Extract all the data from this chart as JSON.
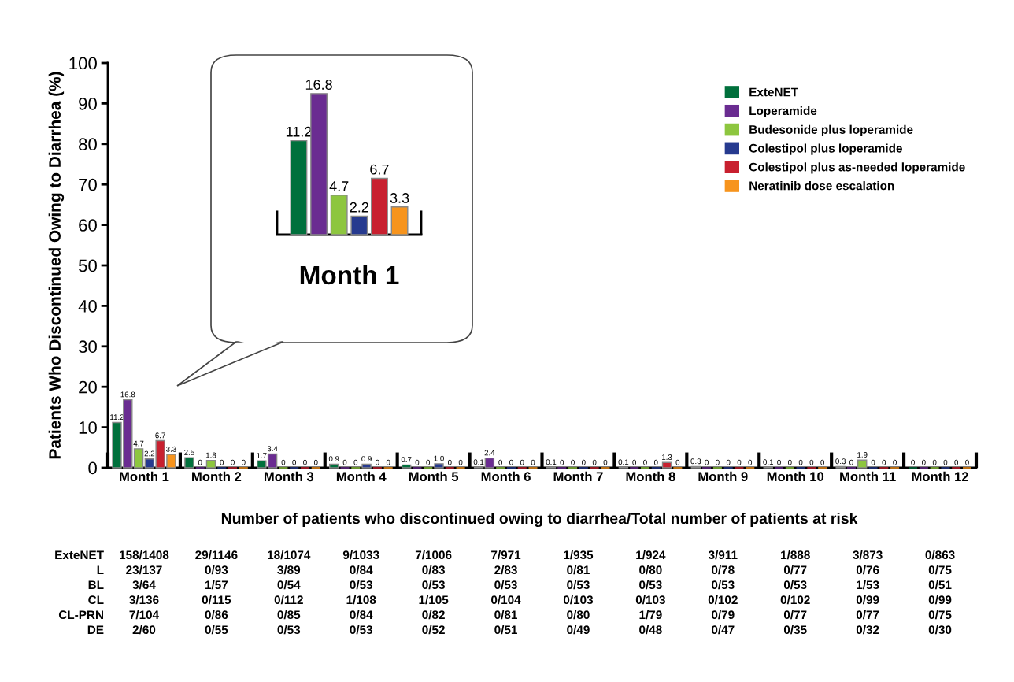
{
  "chart_data": [
    {
      "type": "bar",
      "ylabel": "Patients Who Discontinued Owing to Diarrhea (%)",
      "categories": [
        "Month 1",
        "Month 2",
        "Month 3",
        "Month 4",
        "Month 5",
        "Month 6",
        "Month 7",
        "Month 8",
        "Month 9",
        "Month 10",
        "Month 11",
        "Month 12"
      ],
      "series": [
        {
          "name": "ExteNET",
          "color": "#00703c",
          "values": [
            11.2,
            2.5,
            1.7,
            0.9,
            0.7,
            0.1,
            0.1,
            0.1,
            0.3,
            0.1,
            0.3,
            0
          ],
          "value_labels": [
            "11.2",
            "2.5",
            "1.7",
            "0.9",
            "0.7",
            "0.1",
            "0.1",
            "0.1",
            "0.3",
            "0.1",
            "0.3",
            "0"
          ]
        },
        {
          "name": "Loperamide",
          "color": "#6a2c91",
          "values": [
            16.8,
            0,
            3.4,
            0,
            0,
            2.4,
            0,
            0,
            0,
            0,
            0,
            0
          ],
          "value_labels": [
            "16.8",
            "0",
            "3.4",
            "0",
            "0",
            "2.4",
            "0",
            "0",
            "0",
            "0",
            "0",
            "0"
          ]
        },
        {
          "name": "Budesonide plus loperamide",
          "color": "#8dc63f",
          "values": [
            4.7,
            1.8,
            0,
            0,
            0,
            0,
            0,
            0,
            0,
            0,
            1.9,
            0
          ],
          "value_labels": [
            "4.7",
            "1.8",
            "0",
            "0",
            "0",
            "0",
            "0",
            "0",
            "0",
            "0",
            "1.9",
            "0"
          ]
        },
        {
          "name": "Colestipol plus loperamide",
          "color": "#263a8f",
          "values": [
            2.2,
            0,
            0,
            0.9,
            1.0,
            0,
            0,
            0,
            0,
            0,
            0,
            0
          ],
          "value_labels": [
            "2.2",
            "0",
            "0",
            "0.9",
            "1.0",
            "0",
            "0",
            "0",
            "0",
            "0",
            "0",
            "0"
          ]
        },
        {
          "name": "Colestipol plus as-needed loperamide",
          "color": "#c8202f",
          "values": [
            6.7,
            0,
            0,
            0,
            0,
            0,
            0,
            1.3,
            0,
            0,
            0,
            0
          ],
          "value_labels": [
            "6.7",
            "0",
            "0",
            "0",
            "0",
            "0",
            "0",
            "1.3",
            "0",
            "0",
            "0",
            "0"
          ]
        },
        {
          "name": "Neratinib dose escalation",
          "color": "#f7941d",
          "values": [
            3.3,
            0,
            0,
            0,
            0,
            0,
            0,
            0,
            0,
            0,
            0,
            0
          ],
          "value_labels": [
            "3.3",
            "0",
            "0",
            "0",
            "0",
            "0",
            "0",
            "0",
            "0",
            "0",
            "0",
            "0"
          ]
        }
      ],
      "ylim": [
        0,
        100
      ],
      "yticks": [
        0,
        10,
        20,
        30,
        40,
        50,
        60,
        70,
        80,
        90,
        100
      ],
      "grid": false,
      "legend": "top right",
      "annotations": [
        "Number of patients who discontinued owing to diarrhea/Total number of patients at risk",
        "ExteNET",
        "158/1408",
        "29/1146",
        "18/1074",
        "9/1033",
        "7/1006",
        "7/971",
        "1/935",
        "1/924",
        "3/911",
        "1/888",
        "3/873",
        "0/863",
        "L",
        "23/137",
        "0/93",
        "3/89",
        "0/84",
        "0/83",
        "2/83",
        "0/81",
        "0/80",
        "0/78",
        "0/77",
        "0/76",
        "0/75",
        "BL",
        "3/64",
        "1/57",
        "0/54",
        "0/53",
        "0/53",
        "0/53",
        "0/53",
        "0/53",
        "0/53",
        "0/53",
        "1/53",
        "0/51",
        "CL",
        "3/136",
        "0/115",
        "0/112",
        "1/108",
        "1/105",
        "0/104",
        "0/103",
        "0/103",
        "0/102",
        "0/102",
        "0/99",
        "0/99",
        "CL-PRN",
        "7/104",
        "0/86",
        "0/85",
        "0/84",
        "0/82",
        "0/81",
        "0/80",
        "1/79",
        "0/79",
        "0/77",
        "0/77",
        "0/75",
        "DE",
        "2/60",
        "0/55",
        "0/53",
        "0/53",
        "0/52",
        "0/51",
        "0/49",
        "0/48",
        "0/47",
        "0/35",
        "0/32",
        "0/30"
      ]
    },
    {
      "type": "bar",
      "categories": [
        "Month 1"
      ],
      "tick_labels": "x",
      "series": [
        {
          "color": "#00703c",
          "values": [
            11.2
          ]
        },
        {
          "color": "#6a2c91",
          "values": [
            16.8
          ]
        },
        {
          "color": "#8dc63f",
          "values": [
            4.7
          ]
        },
        {
          "color": "#263a8f",
          "values": [
            2.2
          ]
        },
        {
          "color": "#c8202f",
          "values": [
            6.7
          ]
        },
        {
          "color": "#f7941d",
          "values": [
            3.3
          ]
        }
      ],
      "data_labels": true
    }
  ]
}
